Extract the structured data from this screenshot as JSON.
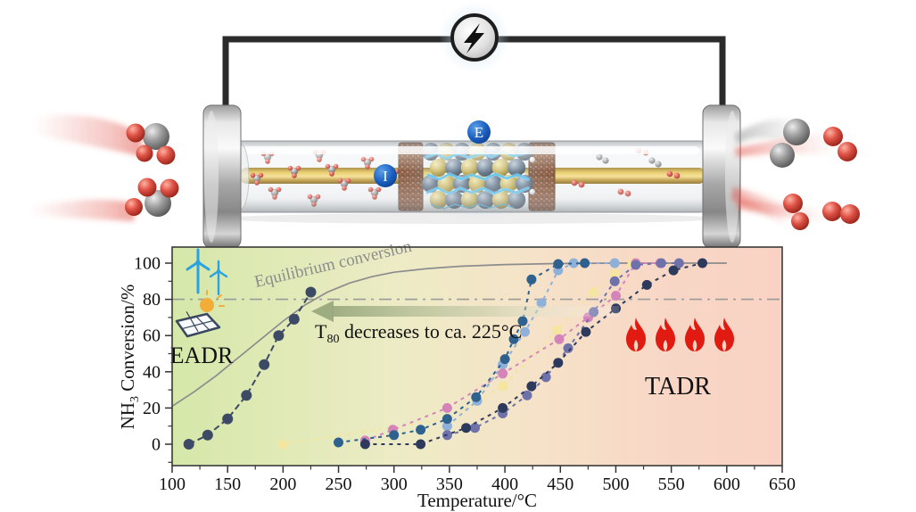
{
  "apparatus": {
    "electrode_label": "E",
    "current_label": "I",
    "icons": {
      "power_supply": "lightning-bolt-icon",
      "reactants": "ammonia-molecules (1 gray N + 3 red H, flowing in)",
      "products": "nitrogen-molecule (gray pair) and hydrogen-molecules (red pairs, flowing out)"
    },
    "colors": {
      "wire": "#2b2b2b",
      "rod_gold": "#e8c95f",
      "plug_brown": "#7c4a30",
      "spark_blue": "#45c0f5",
      "label_blue": "#1b5fc0"
    }
  },
  "chart_data": {
    "type": "line",
    "xlabel": "Temperature/°C",
    "ylabel_parts": {
      "prefix": "NH",
      "sub": "3",
      "suffix": " Conversion/%"
    },
    "xlim": [
      100,
      650
    ],
    "ylim": [
      -12,
      109
    ],
    "x_ticks": [
      100,
      150,
      200,
      250,
      300,
      350,
      400,
      450,
      500,
      550,
      600,
      650
    ],
    "y_ticks": [
      0,
      20,
      40,
      60,
      80,
      100
    ],
    "x_minor_step": 25,
    "y_minor_step": 10,
    "grid": false,
    "legend": "none",
    "reference_line": {
      "y": 80,
      "style": "dash-dot",
      "color": "#9a9a9a"
    },
    "background_gradient": [
      "#d5e8a9",
      "#edebc6",
      "#f5e3c8",
      "#f9d2c3"
    ],
    "equilibrium": {
      "label": "Equilibrium conversion",
      "color": "#8c8c8c",
      "points": [
        [
          100,
          21
        ],
        [
          120,
          29
        ],
        [
          140,
          38
        ],
        [
          160,
          48
        ],
        [
          180,
          58
        ],
        [
          200,
          68
        ],
        [
          220,
          77
        ],
        [
          240,
          84
        ],
        [
          260,
          89
        ],
        [
          280,
          92.5
        ],
        [
          300,
          95
        ],
        [
          330,
          97
        ],
        [
          360,
          98.3
        ],
        [
          400,
          99.2
        ],
        [
          450,
          99.8
        ],
        [
          500,
          100
        ],
        [
          550,
          100
        ],
        [
          600,
          100
        ]
      ]
    },
    "series": [
      {
        "id": "pale-yellow",
        "group": "TADR",
        "color": "#f4e5a0",
        "marker_r": 5.5,
        "dash": "4 5",
        "points": [
          [
            200,
            0
          ],
          [
            348,
            14
          ],
          [
            398,
            32
          ],
          [
            447,
            63
          ],
          [
            480,
            84
          ],
          [
            499,
            94
          ],
          [
            515,
            100
          ]
        ]
      },
      {
        "id": "light-blue",
        "group": "TADR",
        "color": "#8eb0d9",
        "marker_r": 5.5,
        "dash": "4 5",
        "points": [
          [
            348,
            10
          ],
          [
            375,
            24
          ],
          [
            398,
            44
          ],
          [
            418,
            62
          ],
          [
            433,
            78
          ],
          [
            448,
            96
          ],
          [
            462,
            100
          ],
          [
            499,
            100
          ]
        ]
      },
      {
        "id": "pink",
        "group": "TADR",
        "color": "#d584ba",
        "marker_r": 5.5,
        "dash": "4 5",
        "points": [
          [
            274,
            2
          ],
          [
            299,
            8
          ],
          [
            348,
            20
          ],
          [
            398,
            39
          ],
          [
            449,
            58
          ],
          [
            475,
            70
          ],
          [
            500,
            82
          ],
          [
            518,
            100
          ],
          [
            540,
            100
          ]
        ]
      },
      {
        "id": "slate-purple",
        "group": "TADR",
        "color": "#6f72aa",
        "marker_r": 5.5,
        "dash": "4 5",
        "points": [
          [
            348,
            5
          ],
          [
            373,
            9
          ],
          [
            398,
            17
          ],
          [
            420,
            27
          ],
          [
            437,
            37
          ],
          [
            457,
            53
          ],
          [
            480,
            73
          ],
          [
            499,
            90
          ],
          [
            518,
            99
          ],
          [
            541,
            100
          ],
          [
            557,
            100
          ]
        ]
      },
      {
        "id": "steel-blue",
        "group": "TADR",
        "color": "#2f618f",
        "marker_r": 5.5,
        "dash": "4 5",
        "points": [
          [
            250,
            1
          ],
          [
            300,
            5
          ],
          [
            324,
            8
          ],
          [
            348,
            14
          ],
          [
            374,
            26
          ],
          [
            400,
            47
          ],
          [
            408,
            58
          ],
          [
            416,
            68
          ],
          [
            424,
            91
          ],
          [
            448,
            99.5
          ],
          [
            472,
            100
          ]
        ]
      },
      {
        "id": "tadr-navy",
        "group": "TADR",
        "color": "#2e3a5c",
        "marker_r": 5.5,
        "dash": "4 5",
        "points": [
          [
            274,
            0
          ],
          [
            324,
            0
          ],
          [
            365,
            9
          ],
          [
            398,
            20
          ],
          [
            424,
            32
          ],
          [
            448,
            45
          ],
          [
            473,
            62
          ],
          [
            500,
            75
          ],
          [
            528,
            88
          ],
          [
            552,
            96
          ],
          [
            578,
            100
          ]
        ]
      },
      {
        "id": "eadr-navy",
        "group": "EADR",
        "color": "#3c4a66",
        "marker_r": 6,
        "dash": "7 4",
        "points": [
          [
            115,
            0
          ],
          [
            132,
            5
          ],
          [
            150,
            14
          ],
          [
            167,
            27
          ],
          [
            183,
            44
          ],
          [
            196,
            60
          ],
          [
            210,
            69
          ],
          [
            225,
            84
          ]
        ]
      }
    ],
    "annotations": {
      "t80": {
        "prefix": "T",
        "sub": "80",
        "rest": " decreases to ca. 225°C"
      },
      "eadr_label": "EADR",
      "tadr_label": "TADR",
      "arrow": {
        "direction": "left",
        "at_conversion": 73,
        "from_T": 500,
        "to_T": 225
      }
    },
    "icons": {
      "eadr_side": [
        "wind-turbine-icon",
        "solar-panel-icon"
      ],
      "tadr_side": [
        "flame-icon",
        "flame-icon",
        "flame-icon",
        "flame-icon"
      ],
      "flame_color": "#e21b12",
      "turbine_color": "#2aa3df"
    }
  }
}
